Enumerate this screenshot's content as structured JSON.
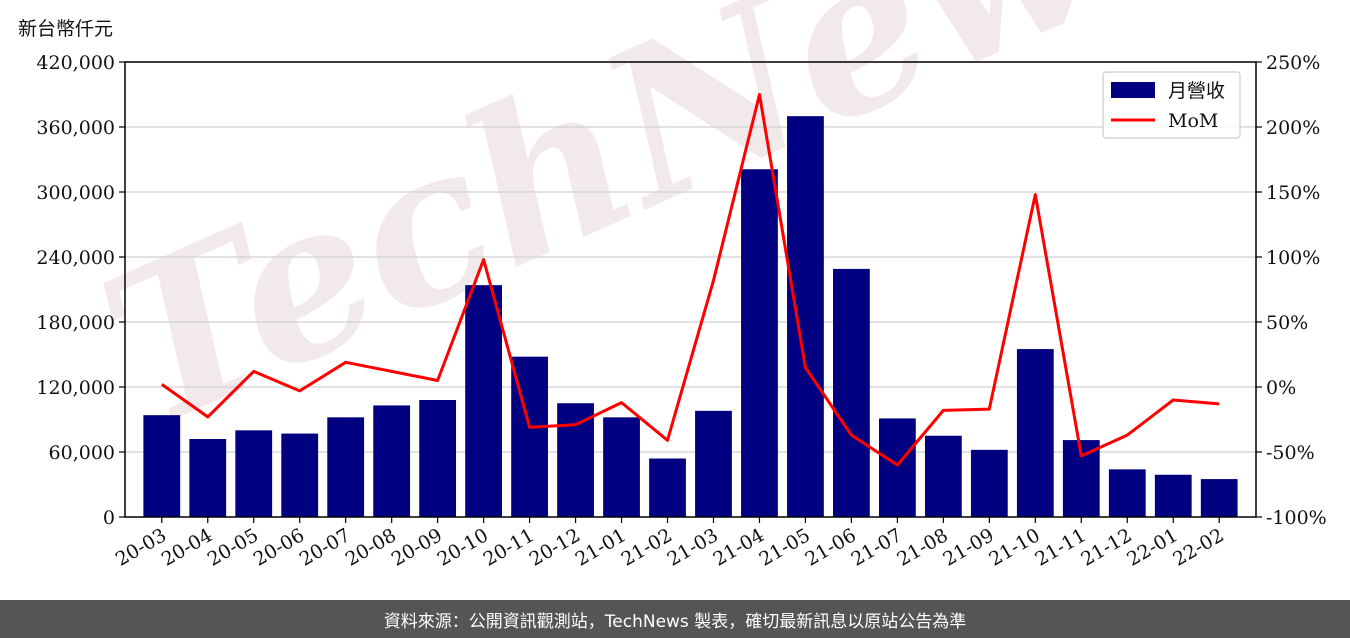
{
  "unit_label": "新台幣仟元",
  "footer": "資料來源：公開資訊觀測站，TechNews 製表，確切最新訊息以原站公告為準",
  "watermark": "TechNews",
  "colors": {
    "bar": "#000080",
    "line": "#ff0000",
    "grid": "#d0d0d0",
    "watermark": "#f2eaea",
    "watermark_accent": "#fbe2e2"
  },
  "chart_data": {
    "type": "bar",
    "categories": [
      "20-03",
      "20-04",
      "20-05",
      "20-06",
      "20-07",
      "20-08",
      "20-09",
      "20-10",
      "20-11",
      "20-12",
      "21-01",
      "21-02",
      "21-03",
      "21-04",
      "21-05",
      "21-06",
      "21-07",
      "21-08",
      "21-09",
      "21-10",
      "21-11",
      "21-12",
      "22-01",
      "22-02"
    ],
    "series": [
      {
        "name": "月營收",
        "type": "bar",
        "axis": "left",
        "values": [
          94000,
          72000,
          80000,
          77000,
          92000,
          103000,
          108000,
          214000,
          148000,
          105000,
          92000,
          54000,
          98000,
          321000,
          370000,
          229000,
          91000,
          75000,
          62000,
          155000,
          71000,
          44000,
          39000,
          35000
        ]
      },
      {
        "name": "MoM",
        "type": "line",
        "axis": "right",
        "values": [
          2,
          -23,
          12,
          -3,
          19,
          12,
          5,
          98,
          -31,
          -29,
          -12,
          -41,
          82,
          225,
          15,
          -37,
          -60,
          -18,
          -17,
          148,
          -53,
          -37,
          -10,
          -13
        ]
      }
    ],
    "y_left": {
      "min": 0,
      "max": 420000,
      "ticks": [
        0,
        60000,
        120000,
        180000,
        240000,
        300000,
        360000,
        420000
      ],
      "tick_labels": [
        "0",
        "60,000",
        "120,000",
        "180,000",
        "240,000",
        "300,000",
        "360,000",
        "420,000"
      ]
    },
    "y_right": {
      "min": -100,
      "max": 250,
      "ticks": [
        -100,
        -50,
        0,
        50,
        100,
        150,
        200,
        250
      ],
      "tick_labels": [
        "-100%",
        "-50%",
        "0%",
        "50%",
        "100%",
        "150%",
        "200%",
        "250%"
      ]
    },
    "grid": "horizontal",
    "legend": {
      "placement": "top-right",
      "entries": [
        "月營收",
        "MoM"
      ]
    }
  }
}
